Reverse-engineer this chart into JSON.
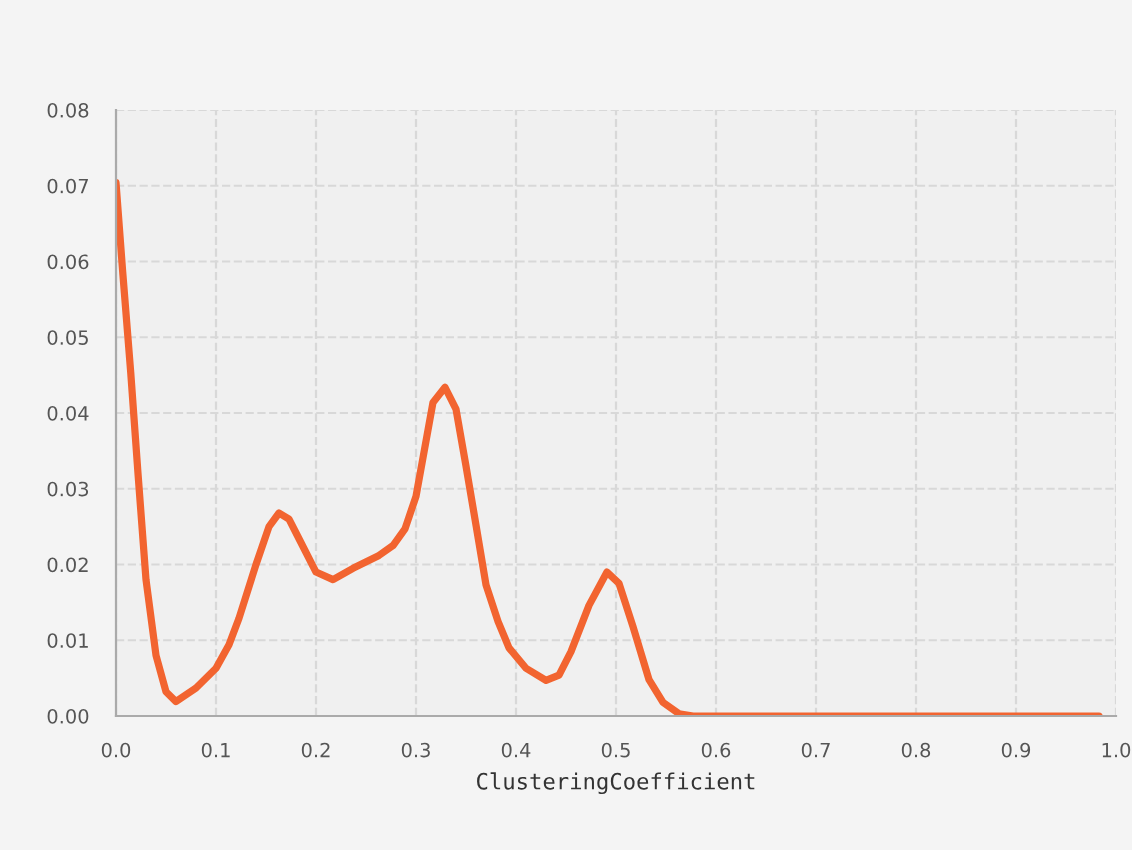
{
  "chart_data": {
    "type": "line",
    "xlabel": "ClusteringCoefficient",
    "series": [
      {
        "color": "#f26430",
        "x": [
          0,
          0.0067,
          0.0147,
          0.022,
          0.03,
          0.04,
          0.05,
          0.06,
          0.08,
          0.1,
          0.113,
          0.123,
          0.14,
          0.153,
          0.163,
          0.173,
          0.183,
          0.2,
          0.217,
          0.237,
          0.263,
          0.277,
          0.289,
          0.3,
          0.317,
          0.329,
          0.34,
          0.35,
          0.36,
          0.37,
          0.382,
          0.393,
          0.41,
          0.43,
          0.443,
          0.455,
          0.473,
          0.491,
          0.503,
          0.517,
          0.533,
          0.547,
          0.563,
          0.577,
          0.6,
          0.7,
          0.8,
          0.9,
          0.983
        ],
        "values": [
          0.0704,
          0.0586,
          0.0454,
          0.032,
          0.018,
          0.008,
          0.0032,
          0.0019,
          0.0037,
          0.0063,
          0.0094,
          0.0129,
          0.02,
          0.025,
          0.0268,
          0.026,
          0.0234,
          0.019,
          0.018,
          0.0195,
          0.0212,
          0.0225,
          0.0247,
          0.029,
          0.0414,
          0.0434,
          0.0405,
          0.033,
          0.0252,
          0.0173,
          0.0125,
          0.009,
          0.0063,
          0.0047,
          0.0054,
          0.0085,
          0.0146,
          0.019,
          0.0175,
          0.0118,
          0.0048,
          0.0018,
          0.0003,
          0,
          0,
          0,
          0,
          0,
          0
        ]
      }
    ],
    "xlim": [
      0,
      1.0
    ],
    "xticks": [
      {
        "value": 0,
        "label": "0.0"
      },
      0.1,
      0.2,
      0.3,
      0.4,
      0.5,
      0.6,
      0.7,
      0.8,
      0.9,
      {
        "value": 1.0,
        "label": "1.0"
      }
    ],
    "ylim": [
      0,
      0.08
    ],
    "yticks": [
      {
        "value": 0,
        "label": "0.00"
      },
      {
        "value": 0.01,
        "label": "0.01"
      },
      {
        "value": 0.02,
        "label": "0.02"
      },
      {
        "value": 0.03,
        "label": "0.03"
      },
      {
        "value": 0.04,
        "label": "0.04"
      },
      {
        "value": 0.05,
        "label": "0.05"
      },
      {
        "value": 0.06,
        "label": "0.06"
      },
      {
        "value": 0.07,
        "label": "0.07"
      },
      {
        "value": 0.08,
        "label": "0.08"
      }
    ],
    "grid": true,
    "line_style": "solid"
  }
}
